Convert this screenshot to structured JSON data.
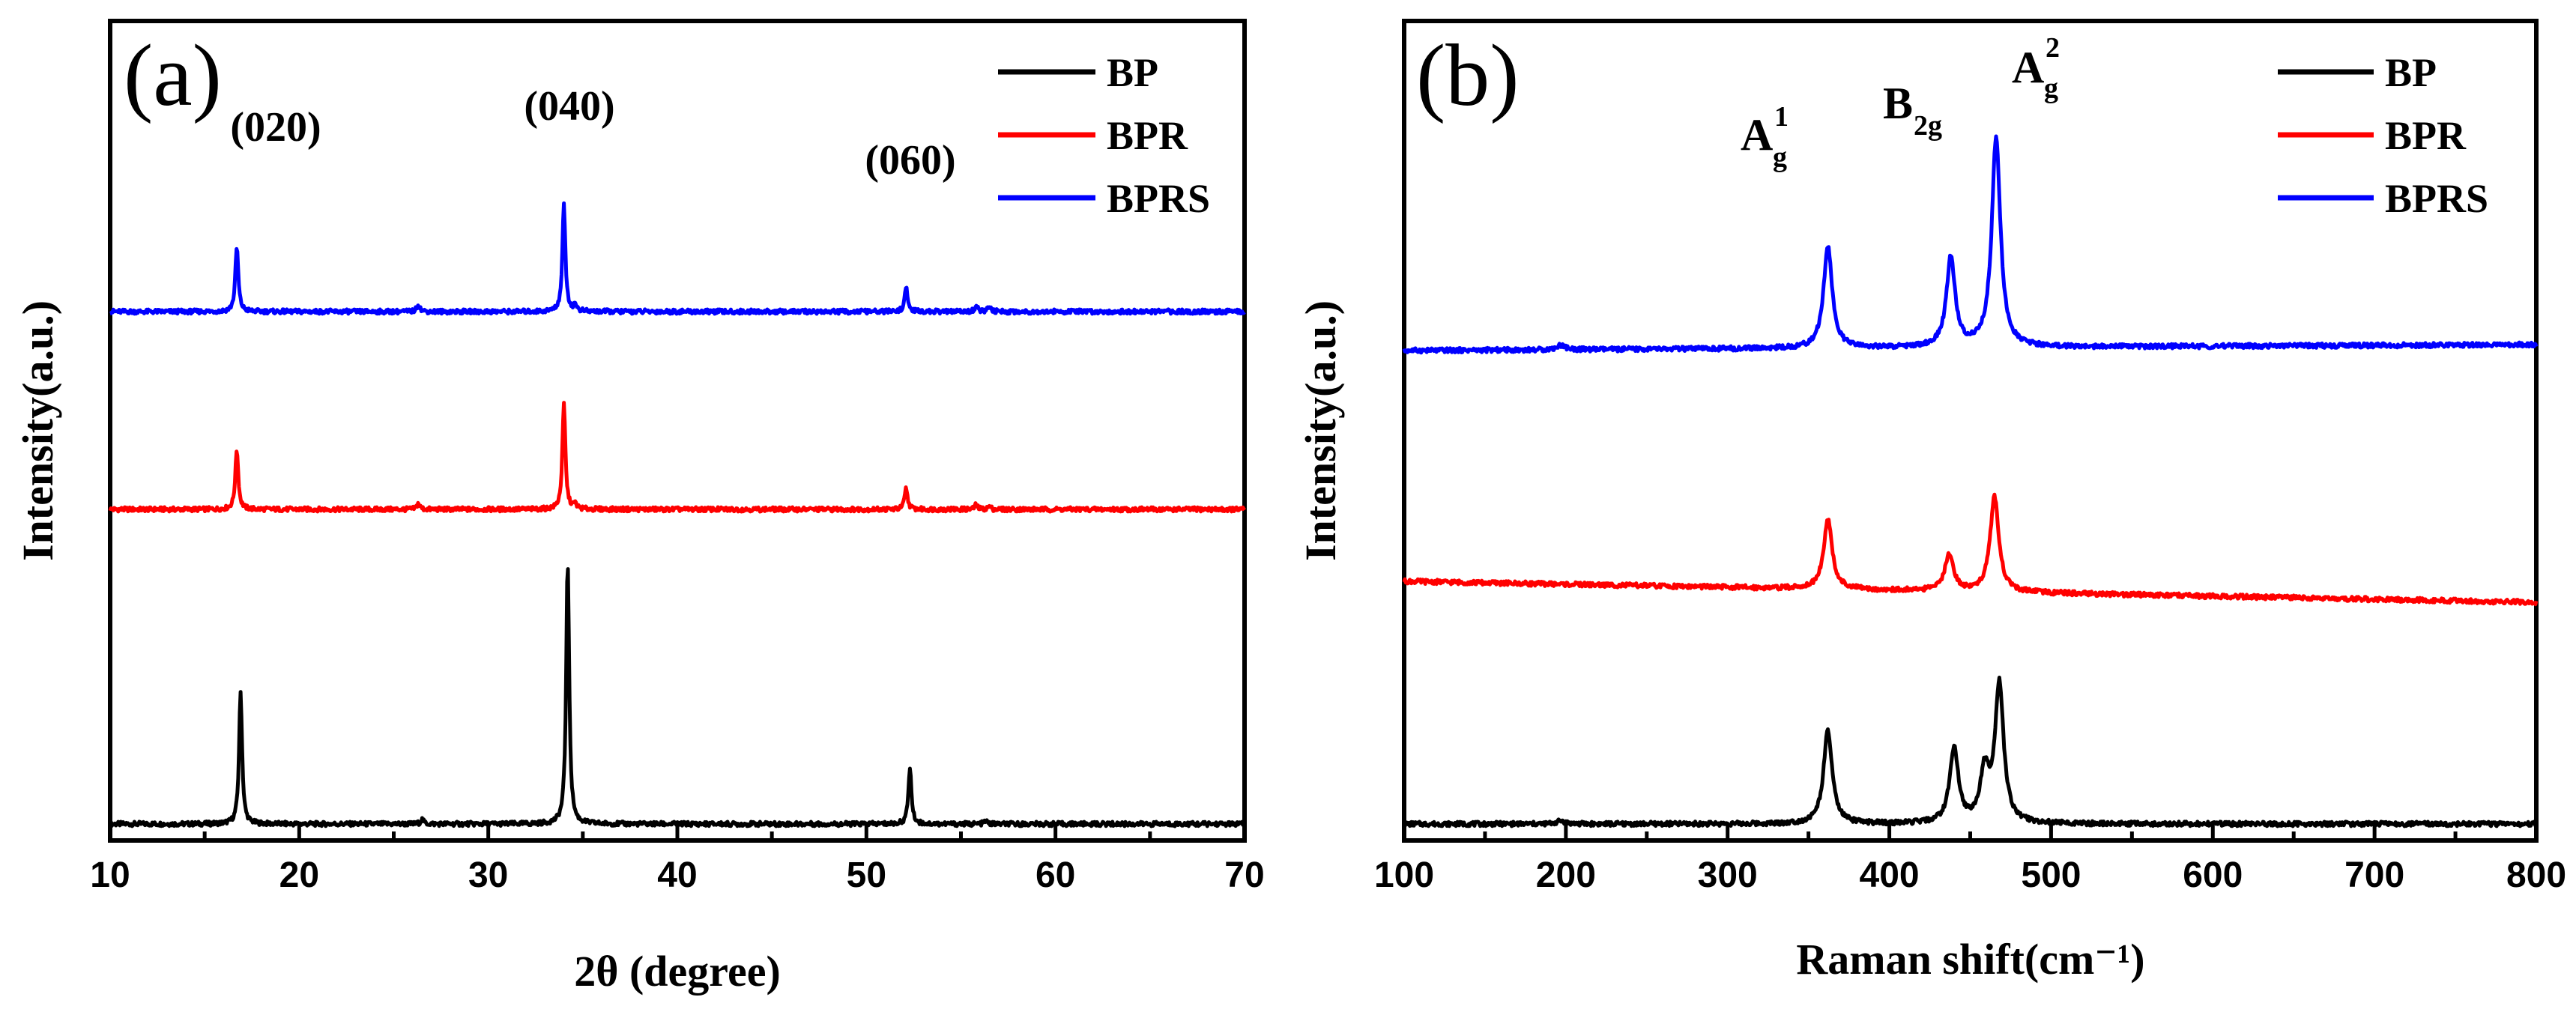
{
  "chart_data": [
    {
      "id": "a",
      "type": "line",
      "panel_label": "(a)",
      "xlabel": "2θ (degree)",
      "ylabel": "Intensity(a.u.)",
      "xlim": [
        10,
        70
      ],
      "xticks": [
        10,
        20,
        30,
        40,
        50,
        60,
        70
      ],
      "yticks": false,
      "legend_position": "top-right",
      "annotations": [
        {
          "text": "(020)",
          "x": 16.9
        },
        {
          "text": "(040)",
          "x": 34.1
        },
        {
          "text": "(060)",
          "x": 52.2
        }
      ],
      "series": [
        {
          "name": "BP",
          "color": "#000000",
          "offset": 0,
          "baseline": 0,
          "peaks": [
            [
              16.9,
              88
            ],
            [
              26.5,
              3
            ],
            [
              34.2,
              175
            ],
            [
              52.3,
              38
            ],
            [
              56.3,
              2
            ]
          ]
        },
        {
          "name": "BPR",
          "color": "#ff0000",
          "offset": 210,
          "baseline": 0,
          "peaks": [
            [
              16.7,
              40
            ],
            [
              26.3,
              4
            ],
            [
              34.0,
              70
            ],
            [
              34.6,
              3
            ],
            [
              52.1,
              14
            ],
            [
              55.8,
              3
            ],
            [
              56.5,
              2
            ]
          ]
        },
        {
          "name": "BPRS",
          "color": "#0000ff",
          "offset": 342,
          "baseline": 0,
          "peaks": [
            [
              16.7,
              43
            ],
            [
              26.3,
              5
            ],
            [
              34.0,
              71
            ],
            [
              34.6,
              4
            ],
            [
              52.1,
              16
            ],
            [
              55.8,
              4
            ],
            [
              56.5,
              3
            ]
          ]
        }
      ]
    },
    {
      "id": "b",
      "type": "line",
      "panel_label": "(b)",
      "xlabel": "Raman shift(cm⁻¹)",
      "ylabel": "Intensity(a.u.)",
      "xlim": [
        100,
        800
      ],
      "xticks": [
        100,
        200,
        300,
        400,
        500,
        600,
        700,
        800
      ],
      "yticks": false,
      "legend_position": "top-right",
      "annotations": [
        {
          "base": "A",
          "sub": "g",
          "sup": "1",
          "x": 362
        },
        {
          "base": "B",
          "sub": "2g",
          "sup": "",
          "x": 440
        },
        {
          "base": "A",
          "sub": "g",
          "sup": "2",
          "x": 467
        }
      ],
      "series": [
        {
          "name": "BP",
          "color": "#000000",
          "offset": 0,
          "baseline": 0,
          "peaks": [
            [
              197,
              2
            ],
            [
              362,
              62
            ],
            [
              440,
              50
            ],
            [
              459,
              34
            ],
            [
              468,
              92
            ]
          ]
        },
        {
          "name": "BPR",
          "color": "#ff0000",
          "offset": 148,
          "baseline_start": 14,
          "baseline_end": 0,
          "peaks": [
            [
              362,
              46
            ],
            [
              437,
              25
            ],
            [
              465,
              64
            ]
          ]
        },
        {
          "name": "BPRS",
          "color": "#0000ff",
          "offset": 320,
          "baseline_start": -4,
          "baseline_end": 0,
          "peaks": [
            [
              197,
              3
            ],
            [
              362,
              68
            ],
            [
              438,
              60
            ],
            [
              466,
              140
            ]
          ]
        }
      ]
    }
  ]
}
